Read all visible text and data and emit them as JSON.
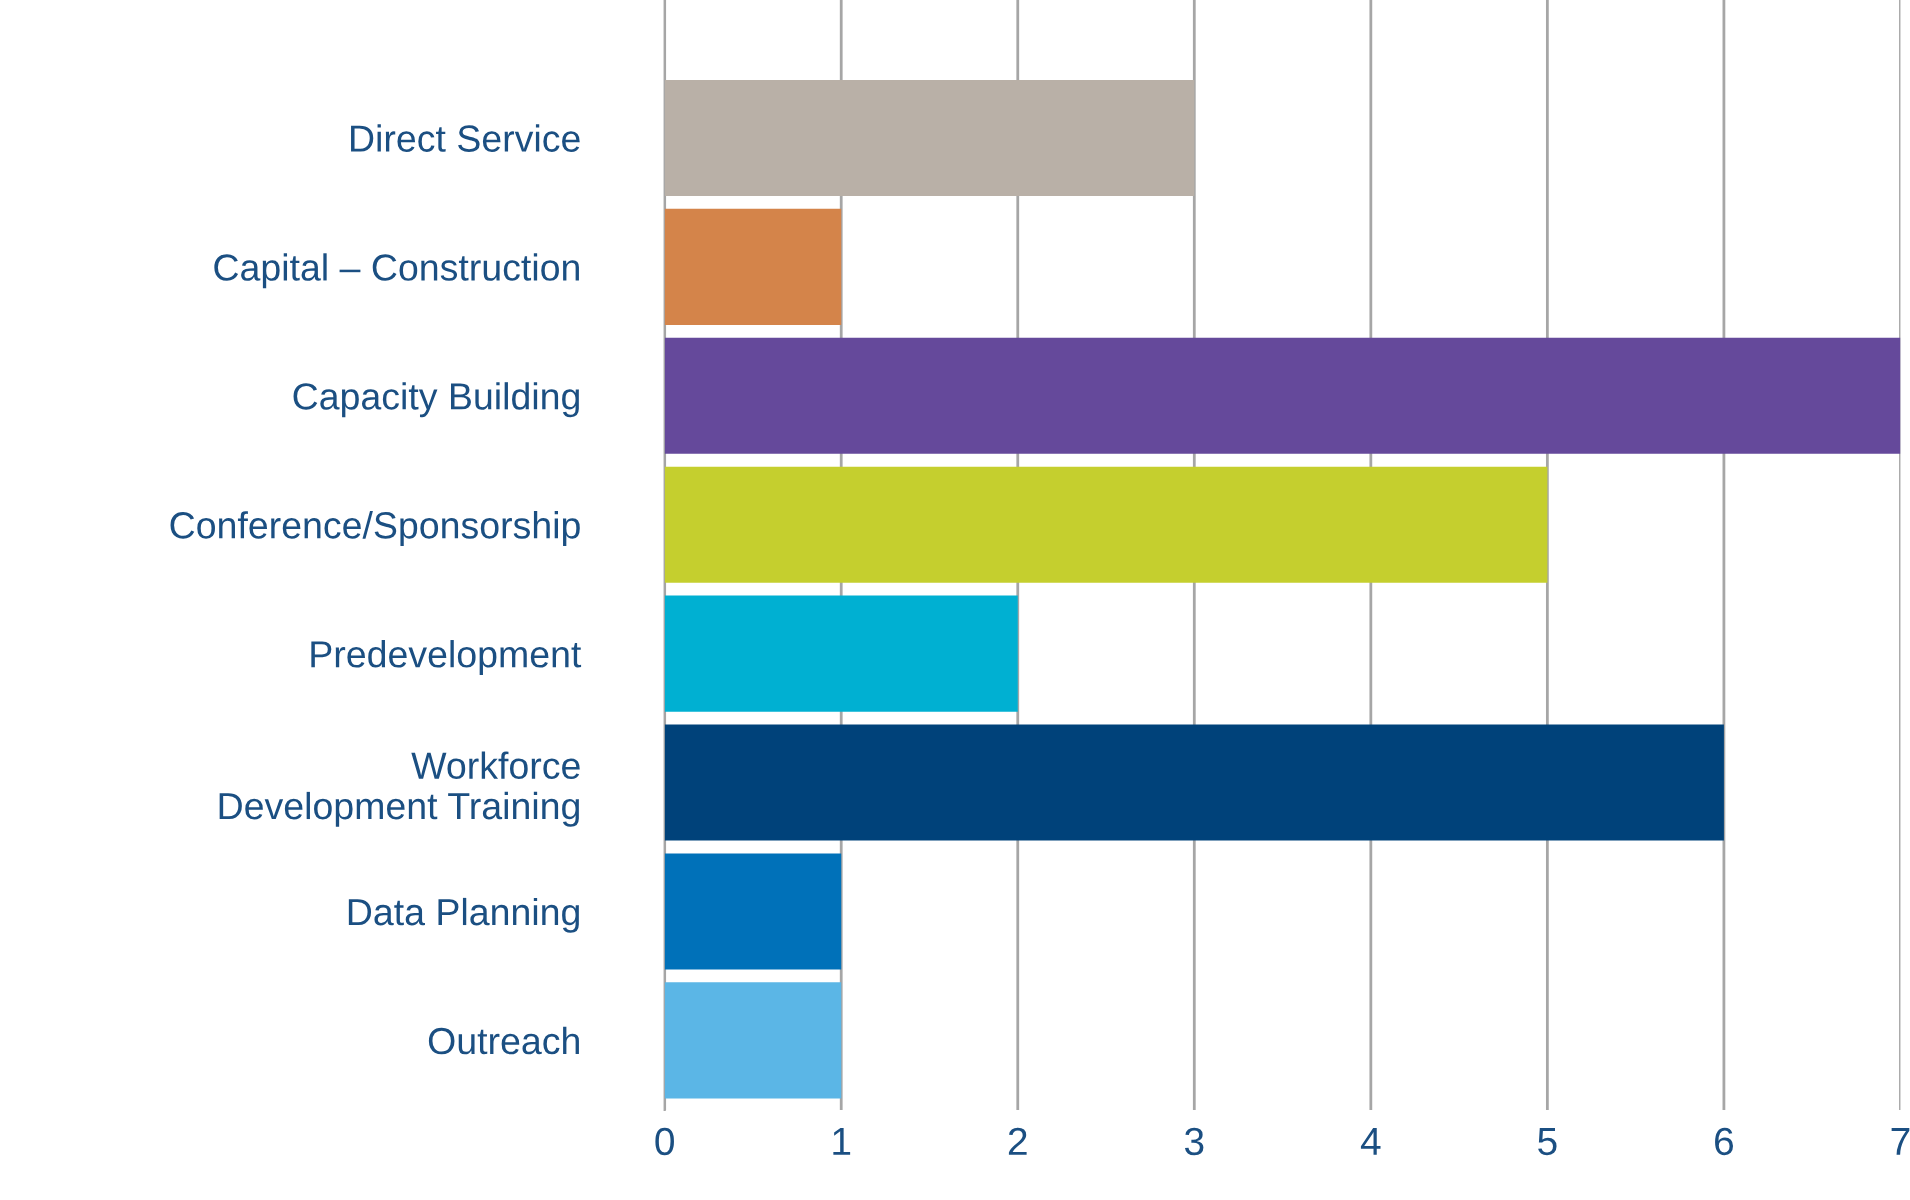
{
  "chart_data": {
    "type": "bar",
    "orientation": "horizontal",
    "categories": [
      "Direct Service",
      "Capital – Construction",
      "Capacity Building",
      "Conference/Sponsorship",
      "Predevelopment",
      "Workforce\nDevelopment Training",
      "Data Planning",
      "Outreach"
    ],
    "values": [
      3,
      1,
      7,
      5,
      2,
      6,
      1,
      1
    ],
    "colors": [
      "#b9b0a7",
      "#d4844a",
      "#65499b",
      "#c5cf2e",
      "#00b0d2",
      "#00427a",
      "#0071b9",
      "#5bb6e6"
    ],
    "xlim": [
      0,
      7
    ],
    "xticks": [
      0,
      1,
      2,
      3,
      4,
      5,
      6,
      7
    ],
    "grid": "x",
    "legend": false
  }
}
